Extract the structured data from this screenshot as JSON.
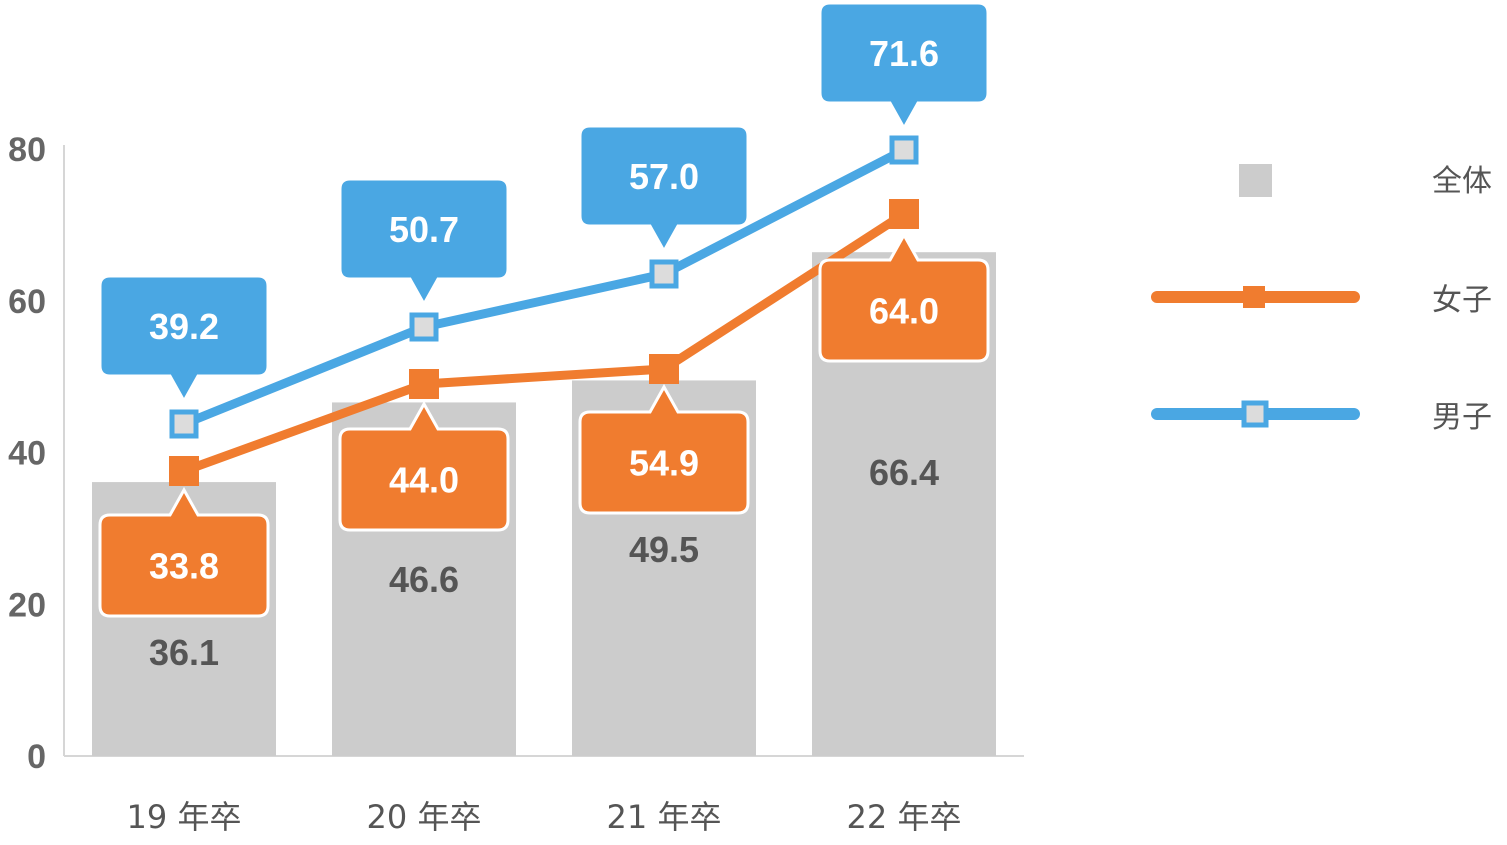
{
  "chart_data": {
    "type": "bar",
    "categories": [
      "19 年卒",
      "20 年卒",
      "21 年卒",
      "22 年卒"
    ],
    "ylim": [
      0,
      80
    ],
    "yticks": [
      "0",
      "20",
      "40",
      "60",
      "80"
    ],
    "grid": false,
    "legend_position": "right",
    "series": [
      {
        "name": "全体",
        "kind": "bar",
        "color": "#cccccc",
        "values": [
          36.1,
          46.6,
          49.5,
          66.4
        ]
      },
      {
        "name": "女子",
        "kind": "line",
        "color": "#f07c2f",
        "values": [
          33.8,
          44.0,
          54.9,
          64.0
        ]
      },
      {
        "name": "男子",
        "kind": "line",
        "color": "#4aa7e3",
        "values": [
          39.2,
          50.7,
          57.0,
          71.6
        ]
      }
    ]
  }
}
